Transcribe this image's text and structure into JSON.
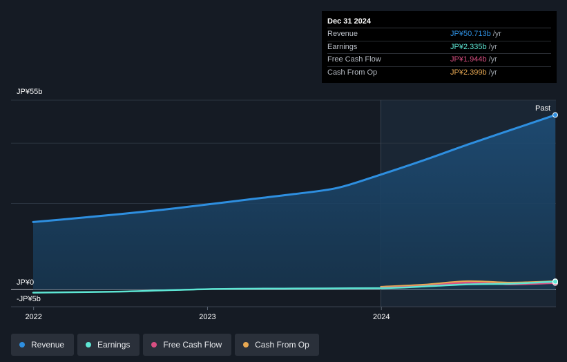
{
  "chart_data": {
    "type": "area",
    "y_top_label": "JP¥55b",
    "y_zero_label": "JP¥0",
    "y_bottom_label": "-JP¥5b",
    "ylim": [
      -5,
      55
    ],
    "xlim": [
      "2021-12-31",
      "2024-12-31"
    ],
    "x_ticks": [
      "2022",
      "2023",
      "2024"
    ],
    "past_label": "Past",
    "grid": true,
    "series": [
      {
        "name": "Revenue",
        "color": "#2e8fe0",
        "points": [
          [
            "2021-12-31",
            19.6
          ],
          [
            "2022-03-31",
            20.7
          ],
          [
            "2022-06-30",
            21.9
          ],
          [
            "2022-09-30",
            23.2
          ],
          [
            "2022-12-31",
            24.7
          ],
          [
            "2023-03-31",
            26.2
          ],
          [
            "2023-06-30",
            27.7
          ],
          [
            "2023-09-30",
            29.5
          ],
          [
            "2023-12-31",
            33.4
          ],
          [
            "2024-03-31",
            37.6
          ],
          [
            "2024-06-30",
            42.1
          ],
          [
            "2024-09-30",
            46.4
          ],
          [
            "2024-12-31",
            50.7
          ]
        ]
      },
      {
        "name": "Earnings",
        "color": "#5ee6d4",
        "points": [
          [
            "2021-12-31",
            -0.9
          ],
          [
            "2022-06-30",
            -0.6
          ],
          [
            "2022-12-31",
            0.1
          ],
          [
            "2023-06-30",
            0.3
          ],
          [
            "2023-12-31",
            0.4
          ],
          [
            "2024-03-31",
            0.9
          ],
          [
            "2024-06-30",
            1.5
          ],
          [
            "2024-09-30",
            1.7
          ],
          [
            "2024-12-31",
            2.3
          ]
        ]
      },
      {
        "name": "Free Cash Flow",
        "color": "#d94f82",
        "points": [
          [
            "2023-12-31",
            0.5
          ],
          [
            "2024-03-31",
            1.0
          ],
          [
            "2024-06-30",
            2.0
          ],
          [
            "2024-09-30",
            1.5
          ],
          [
            "2024-12-31",
            1.9
          ]
        ]
      },
      {
        "name": "Cash From Op",
        "color": "#e8a852",
        "points": [
          [
            "2023-12-31",
            0.8
          ],
          [
            "2024-03-31",
            1.4
          ],
          [
            "2024-06-30",
            2.4
          ],
          [
            "2024-09-30",
            2.0
          ],
          [
            "2024-12-31",
            2.4
          ]
        ]
      }
    ]
  },
  "tooltip": {
    "date": "Dec 31 2024",
    "rows": [
      {
        "label": "Revenue",
        "value": "JP¥50.713b",
        "unit": "/yr",
        "color": "#2e8fe0"
      },
      {
        "label": "Earnings",
        "value": "JP¥2.335b",
        "unit": "/yr",
        "color": "#5ee6d4"
      },
      {
        "label": "Free Cash Flow",
        "value": "JP¥1.944b",
        "unit": "/yr",
        "color": "#d94f82"
      },
      {
        "label": "Cash From Op",
        "value": "JP¥2.399b",
        "unit": "/yr",
        "color": "#e8a852"
      }
    ]
  },
  "legend": [
    {
      "label": "Revenue",
      "color": "#2e8fe0"
    },
    {
      "label": "Earnings",
      "color": "#5ee6d4"
    },
    {
      "label": "Free Cash Flow",
      "color": "#d94f82"
    },
    {
      "label": "Cash From Op",
      "color": "#e8a852"
    }
  ]
}
